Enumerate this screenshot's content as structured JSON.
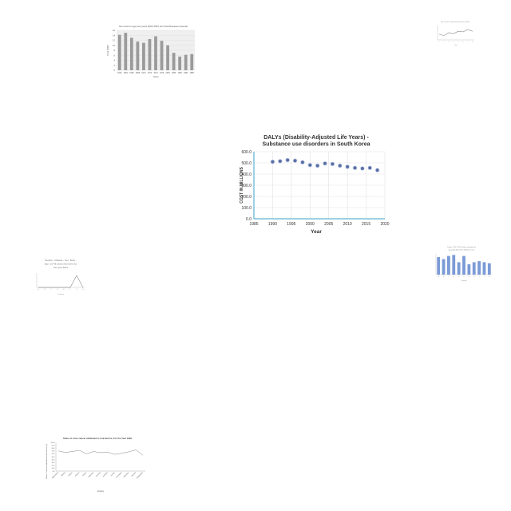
{
  "chart_data": [
    {
      "id": "top-left-bar",
      "type": "bar",
      "title": "Net costs for age 1to4 years (2015 PPP) and Total Diseases (Ireland)",
      "xlabel": "Years",
      "ylabel": "Cost (INR)",
      "categories": [
        "1962",
        "1964",
        "1966",
        "1968",
        "1970",
        "1972",
        "1974",
        "1976",
        "1978",
        "1980",
        "1982",
        "1984",
        "1986"
      ],
      "values": [
        14.2,
        15.0,
        13.0,
        11.5,
        11.0,
        12.5,
        13.6,
        11.8,
        10.0,
        7.0,
        5.5,
        6.2,
        6.5
      ],
      "ylim": [
        0,
        16
      ],
      "yticks": [
        "0",
        "2",
        "4",
        "6",
        "8",
        "10",
        "12",
        "14",
        "16"
      ],
      "grid": true
    },
    {
      "id": "top-right-line",
      "type": "line",
      "title": "Net costs for Cardiovascular diseases (2015)",
      "xlabel": "Year",
      "ylabel": "",
      "x": [
        "1",
        "2",
        "3",
        "4",
        "5",
        "6",
        "7",
        "8"
      ],
      "values": [
        2.0,
        1.5,
        2.5,
        2.2,
        3.0,
        2.8,
        3.6,
        3.0
      ],
      "ylim": [
        0,
        5
      ]
    },
    {
      "id": "main-scatter",
      "type": "scatter",
      "title": "DALYs (Disability-Adjusted Life Years) - Substance use disorders in South Korea",
      "xlabel": "Year",
      "ylabel": "COST IN MILLIONS",
      "x": [
        1990,
        1992,
        1994,
        1996,
        1998,
        2000,
        2002,
        2004,
        2006,
        2008,
        2010,
        2012,
        2014,
        2016,
        2018
      ],
      "values": [
        510,
        515,
        525,
        520,
        505,
        480,
        475,
        495,
        490,
        475,
        465,
        455,
        450,
        455,
        435
      ],
      "xlim": [
        1985,
        2020
      ],
      "ylim": [
        0,
        600
      ],
      "xticks": [
        "1985",
        "1990",
        "1995",
        "2000",
        "2005",
        "2010",
        "2015",
        "2020"
      ],
      "yticks": [
        "0.0",
        "100.0",
        "200.0",
        "300.0",
        "400.0",
        "500.0",
        "600.0"
      ],
      "grid": true,
      "color": "#5a6fa5"
    },
    {
      "id": "left-triangle",
      "type": "line",
      "title": "Deaths - Malaria - Sex: Both - Age: 15-49 years (Number) for the year 2011",
      "xlabel": "Country",
      "ylabel": "",
      "categories": [
        "A",
        "B",
        "C",
        "D",
        "E",
        "F",
        "G",
        "H"
      ],
      "values": [
        0,
        0,
        0,
        0,
        0,
        0,
        10,
        0
      ],
      "ylim": [
        0,
        12
      ]
    },
    {
      "id": "right-bar",
      "type": "bar",
      "title": "Deaths - 1990 - 2019, Drug use disorders by age group, Both sexes, Number of cases",
      "xlabel": "Country",
      "ylabel": "",
      "categories": [
        "A",
        "B",
        "C",
        "D",
        "E",
        "F",
        "G",
        "H",
        "I",
        "J",
        "K"
      ],
      "values": [
        8.5,
        7.5,
        9.0,
        9.5,
        6.0,
        9.0,
        5.0,
        6.0,
        6.5,
        6.0,
        5.5
      ],
      "ylim": [
        0,
        10
      ],
      "color": "#7b9bd6"
    },
    {
      "id": "bottom-left-line",
      "type": "line",
      "title": "Share of Liver cancer attributed to risk factors, For the Year 1990",
      "xlabel": "Country",
      "ylabel": "Share of cancers attributed to risk factors (%)",
      "categories": [
        "Afghanistan",
        "Albania",
        "Algeria",
        "Andorra",
        "Angola",
        "Argentina",
        "Armenia",
        "Australia",
        "Austria",
        "Azerbaijan",
        "Bahamas",
        "Bahrain",
        "Bangladesh"
      ],
      "values": [
        70,
        65,
        68,
        72,
        60,
        68,
        64,
        66,
        58,
        62,
        67,
        74,
        55
      ],
      "ylim": [
        0,
        100
      ],
      "yticks": [
        "0.0",
        "10.0",
        "20.0",
        "30.0",
        "40.0",
        "50.0",
        "60.0",
        "70.0",
        "80.0",
        "90.0",
        "100.0"
      ],
      "color": "#888888"
    }
  ]
}
